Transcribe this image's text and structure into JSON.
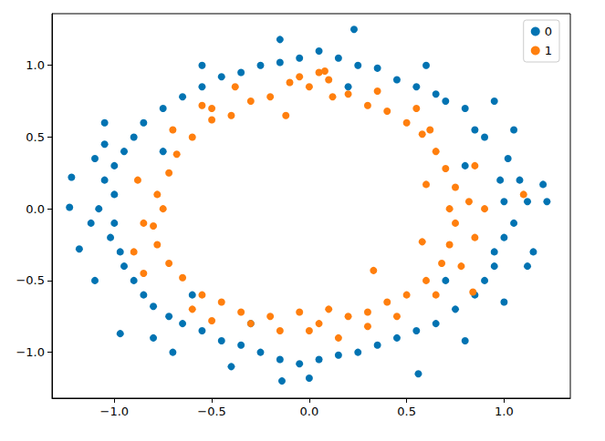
{
  "chart_data": {
    "type": "scatter",
    "marker": "circle",
    "legend": "upper right",
    "grid": false,
    "xlim": [
      -1.32,
      1.34
    ],
    "ylim": [
      -1.32,
      1.36
    ],
    "xticks": [
      {
        "value": -1.0,
        "label": "−1.0"
      },
      {
        "value": -0.5,
        "label": "−0.5"
      },
      {
        "value": 0.0,
        "label": "0.0"
      },
      {
        "value": 0.5,
        "label": "0.5"
      },
      {
        "value": 1.0,
        "label": "1.0"
      }
    ],
    "yticks": [
      {
        "value": -1.0,
        "label": "−1.0"
      },
      {
        "value": -0.5,
        "label": "−0.5"
      },
      {
        "value": 0.0,
        "label": "0.0"
      },
      {
        "value": 0.5,
        "label": "0.5"
      },
      {
        "value": 1.0,
        "label": "1.0"
      }
    ],
    "series": [
      {
        "name": "0",
        "color": "#0173b2",
        "x": [
          1.0,
          1.05,
          0.98,
          1.12,
          0.95,
          1.02,
          0.9,
          0.85,
          0.8,
          0.7,
          0.65,
          0.55,
          0.45,
          0.35,
          0.25,
          0.15,
          0.05,
          -0.05,
          -0.15,
          -0.25,
          -0.35,
          -0.45,
          -0.55,
          -0.65,
          -0.75,
          -0.85,
          -0.9,
          -0.95,
          -1.0,
          -1.05,
          -1.0,
          -1.08,
          -1.0,
          -1.02,
          -0.97,
          -0.95,
          -0.9,
          -0.85,
          -0.8,
          -0.72,
          -0.65,
          -0.55,
          -0.45,
          -0.35,
          -0.25,
          -0.15,
          -0.05,
          0.05,
          0.15,
          0.25,
          0.35,
          0.45,
          0.55,
          0.65,
          0.75,
          0.85,
          0.9,
          0.95,
          1.0,
          1.08,
          -1.22,
          -1.23,
          -1.18,
          -1.12,
          -1.1,
          -1.05,
          -0.97,
          1.22,
          1.2,
          1.15,
          1.12,
          0.56,
          -0.14,
          0.0,
          0.23,
          -0.4,
          -0.8,
          0.8,
          1.0,
          -1.1,
          0.95,
          -0.15,
          -0.55,
          0.6,
          -0.7,
          1.05,
          -1.05,
          -0.75,
          0.8,
          0.7,
          -0.6,
          0.2,
          -0.3
        ],
        "y": [
          0.05,
          -0.1,
          0.2,
          0.05,
          -0.3,
          0.35,
          0.5,
          0.55,
          0.7,
          0.75,
          0.8,
          0.85,
          0.9,
          0.98,
          1.0,
          1.05,
          1.1,
          1.05,
          1.02,
          1.0,
          0.95,
          0.92,
          0.85,
          0.78,
          0.7,
          0.6,
          0.5,
          0.4,
          0.3,
          0.2,
          0.1,
          0.0,
          -0.1,
          -0.2,
          -0.3,
          -0.4,
          -0.5,
          -0.6,
          -0.68,
          -0.75,
          -0.8,
          -0.85,
          -0.92,
          -0.95,
          -1.0,
          -1.05,
          -1.08,
          -1.05,
          -1.02,
          -1.0,
          -0.95,
          -0.9,
          -0.85,
          -0.8,
          -0.7,
          -0.6,
          -0.5,
          -0.4,
          -0.2,
          0.2,
          0.22,
          0.01,
          -0.28,
          -0.1,
          0.35,
          0.45,
          -0.87,
          0.05,
          0.17,
          -0.3,
          -0.4,
          -1.15,
          -1.2,
          -1.18,
          1.25,
          -1.1,
          -0.9,
          -0.92,
          -0.65,
          -0.5,
          0.75,
          1.18,
          1.0,
          1.0,
          -1.0,
          0.55,
          0.6,
          0.4,
          0.3,
          -0.5,
          -0.6,
          0.85,
          -0.8
        ]
      },
      {
        "name": "1",
        "color": "#ff7f0e",
        "x": [
          0.0,
          0.1,
          -0.1,
          0.2,
          -0.2,
          0.3,
          -0.3,
          0.4,
          -0.4,
          0.5,
          -0.5,
          0.58,
          -0.6,
          0.65,
          -0.68,
          0.7,
          -0.72,
          0.75,
          -0.78,
          0.72,
          -0.75,
          0.75,
          -0.8,
          0.72,
          -0.78,
          0.68,
          -0.72,
          0.6,
          -0.65,
          0.5,
          -0.55,
          0.4,
          -0.45,
          0.3,
          -0.35,
          0.2,
          -0.2,
          0.1,
          -0.05,
          0.05,
          0.05,
          -0.05,
          0.12,
          0.35,
          -0.38,
          -0.55,
          0.55,
          0.85,
          -0.88,
          0.85,
          -0.9,
          -0.85,
          0.82,
          0.62,
          -0.7,
          0.65,
          -0.6,
          0.0,
          0.15,
          -0.15,
          0.3,
          -0.3,
          0.45,
          -0.5,
          0.33,
          1.1,
          0.84,
          0.08,
          -0.5,
          -0.85,
          0.78,
          0.9,
          -0.12,
          0.58,
          0.6
        ],
        "y": [
          0.85,
          0.9,
          0.88,
          0.8,
          0.78,
          0.72,
          0.75,
          0.68,
          0.65,
          0.6,
          0.62,
          0.52,
          0.5,
          0.4,
          0.38,
          0.28,
          0.25,
          0.15,
          0.1,
          0.0,
          0.0,
          -0.1,
          -0.12,
          -0.25,
          -0.25,
          -0.38,
          -0.38,
          -0.5,
          -0.48,
          -0.6,
          -0.6,
          -0.65,
          -0.65,
          -0.72,
          -0.72,
          -0.75,
          -0.75,
          -0.7,
          -0.72,
          -0.8,
          0.95,
          0.92,
          0.78,
          0.82,
          0.85,
          0.72,
          0.7,
          0.3,
          0.2,
          -0.2,
          -0.3,
          -0.1,
          0.05,
          0.55,
          0.55,
          -0.6,
          -0.7,
          -0.85,
          -0.9,
          -0.85,
          -0.82,
          -0.8,
          -0.75,
          -0.78,
          -0.43,
          0.1,
          -0.58,
          0.96,
          0.7,
          -0.45,
          -0.4,
          0.0,
          0.65,
          -0.23,
          0.17
        ]
      }
    ]
  }
}
